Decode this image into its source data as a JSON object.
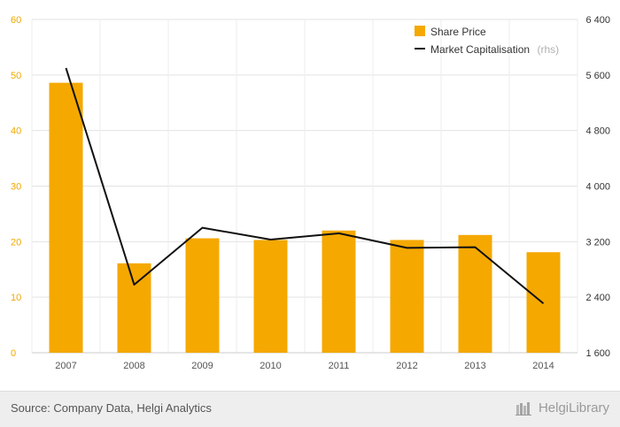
{
  "chart_data": {
    "type": "bar",
    "categories": [
      "2007",
      "2008",
      "2009",
      "2010",
      "2011",
      "2012",
      "2013",
      "2014"
    ],
    "series": [
      {
        "name": "Share Price",
        "type": "bar",
        "axis": "left",
        "color": "#f5a800",
        "values": [
          48.6,
          16.1,
          20.6,
          20.3,
          22.0,
          20.3,
          21.2,
          18.1
        ]
      },
      {
        "name": "Market Capitalisation",
        "name_note": "(rhs)",
        "type": "line",
        "axis": "right",
        "color": "#111111",
        "values": [
          5700,
          2580,
          3400,
          3230,
          3320,
          3110,
          3120,
          2310
        ]
      }
    ],
    "y_left": {
      "range": [
        0,
        60
      ],
      "ticks": [
        "0",
        "10",
        "20",
        "30",
        "40",
        "50",
        "60"
      ],
      "tick_values": [
        0,
        10,
        20,
        30,
        40,
        50,
        60
      ]
    },
    "y_right": {
      "range": [
        1600,
        6400
      ],
      "ticks": [
        "1 600",
        "2 400",
        "3 200",
        "4 000",
        "4 800",
        "5 600",
        "6 400"
      ],
      "tick_values": [
        1600,
        2400,
        3200,
        4000,
        4800,
        5600,
        6400
      ]
    },
    "grid": true,
    "legend_position": "top-right"
  },
  "footer": {
    "source": "Source: Company Data, Helgi Analytics",
    "brand": "HelgiLibrary"
  },
  "colors": {
    "bar": "#f5a800",
    "line": "#111111",
    "left_ticks": "#f0a800",
    "grid": "#e3e3e3"
  }
}
